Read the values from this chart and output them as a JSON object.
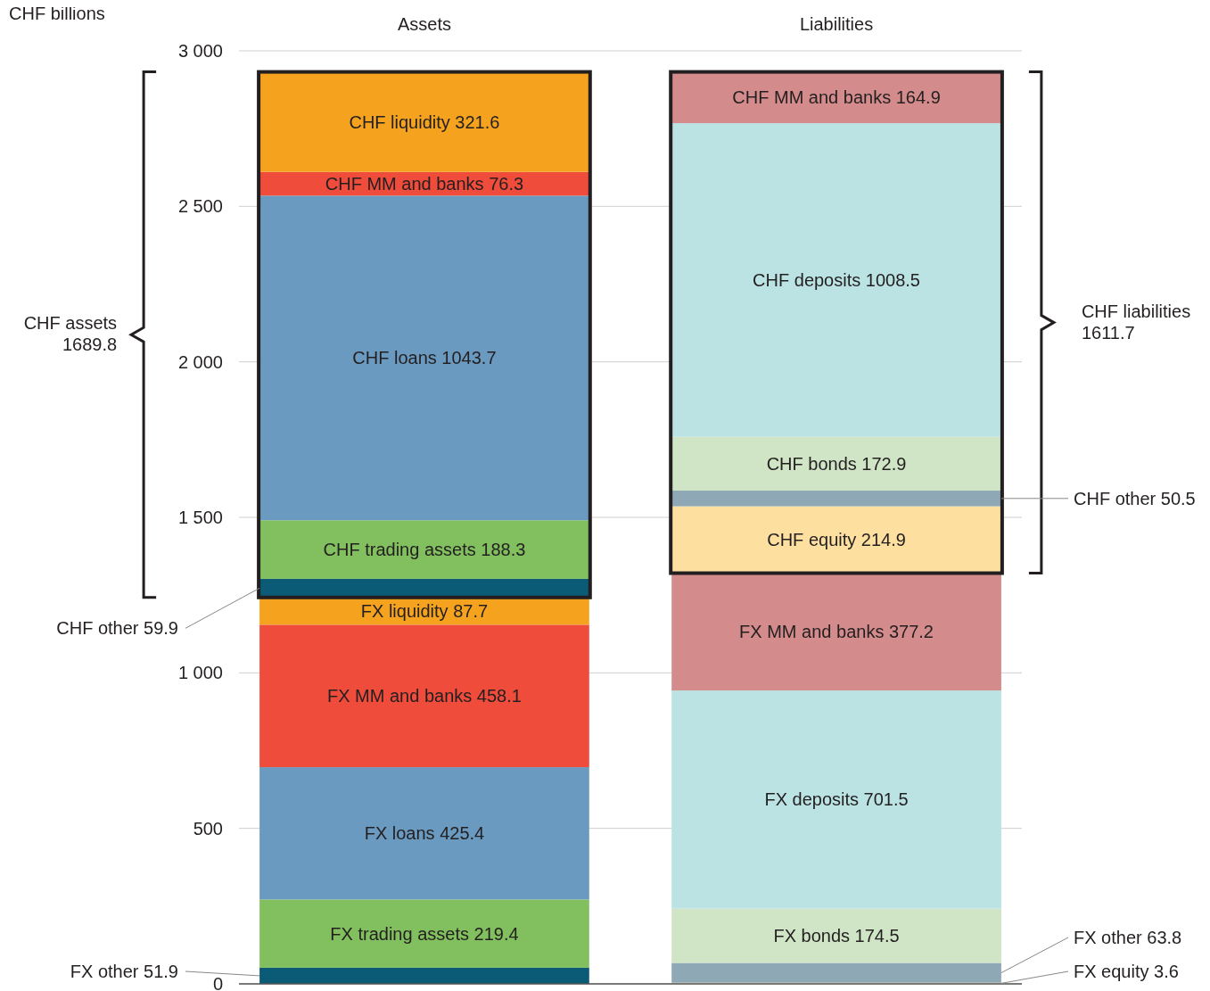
{
  "chart_data": {
    "type": "bar",
    "stacked": true,
    "ylabel": "CHF billions",
    "categories": [
      "Assets",
      "Liabilities"
    ],
    "ylim": [
      0,
      3000
    ],
    "yticks": [
      0,
      500,
      {
        "value": 1000,
        "label": "1 000"
      },
      {
        "value": 1500,
        "label": "1 500"
      },
      {
        "value": 2000,
        "label": "2 000"
      },
      {
        "value": 2500,
        "label": "2 500"
      },
      {
        "value": 3000,
        "label": "3 000"
      }
    ],
    "grid": "y",
    "legend": false,
    "series": [
      {
        "colors": [
          "#0b5a76",
          "#fddfa0"
        ],
        "values": [
          51.9,
          3.6
        ],
        "value_labels": [
          "FX other 51.9",
          "FX equity 3.6"
        ]
      },
      {
        "colors": [
          "#82bf5e",
          "#8fa8b5"
        ],
        "values": [
          219.4,
          63.8
        ],
        "value_labels": [
          "FX trading assets 219.4",
          "FX other 63.8"
        ]
      },
      {
        "colors": [
          "#6a9ac0",
          "#cfe5c5"
        ],
        "values": [
          425.4,
          174.5
        ],
        "value_labels": [
          "FX loans 425.4",
          "FX bonds 174.5"
        ]
      },
      {
        "colors": [
          "#ef4c3c",
          "#bbe3e4"
        ],
        "values": [
          458.1,
          701.5
        ],
        "value_labels": [
          "FX MM and banks 458.1",
          "FX deposits 701.5"
        ]
      },
      {
        "colors": [
          "#f5a31f",
          "#d48b8b"
        ],
        "values": [
          87.7,
          377.2
        ],
        "value_labels": [
          "FX liquidity 87.7",
          "FX MM and banks 377.2"
        ]
      },
      {
        "colors": [
          "#0b5a76",
          "#fddfa0"
        ],
        "values": [
          59.9,
          214.9
        ],
        "value_labels": [
          "CHF other 59.9",
          "CHF equity 214.9"
        ]
      },
      {
        "colors": [
          "#82bf5e",
          "#8fa8b5"
        ],
        "values": [
          188.3,
          50.5
        ],
        "value_labels": [
          "CHF trading assets 188.3",
          "CHF other 50.5"
        ]
      },
      {
        "colors": [
          "#6a9ac0",
          "#cfe5c5"
        ],
        "values": [
          1043.7,
          172.9
        ],
        "value_labels": [
          "CHF loans 1043.7",
          "CHF bonds 172.9"
        ]
      },
      {
        "colors": [
          "#ef4c3c",
          "#bbe3e4"
        ],
        "values": [
          76.3,
          1008.5
        ],
        "value_labels": [
          "CHF MM and banks 76.3",
          "CHF deposits 1008.5"
        ]
      },
      {
        "colors": [
          "#f5a31f",
          "#d48b8b"
        ],
        "values": [
          321.6,
          164.9
        ],
        "value_labels": [
          "CHF liquidity 321.6",
          "CHF MM and banks 164.9"
        ]
      }
    ],
    "annotations": [
      "CHF assets 1689.8",
      "CHF liabilities 1611.7"
    ]
  }
}
